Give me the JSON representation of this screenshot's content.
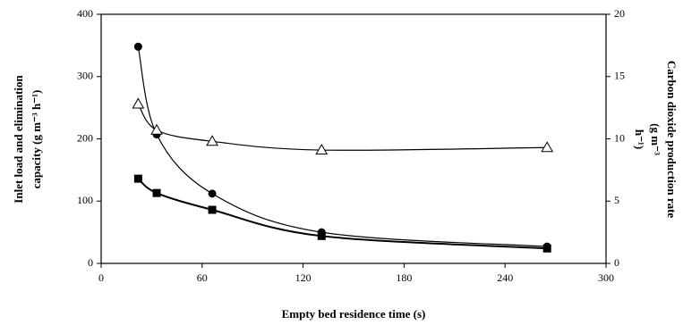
{
  "chart_data": {
    "type": "line",
    "xlabel": "Empty bed residence time (s)",
    "ylabel": [
      "Inlet load and elimination",
      "capacity (g m⁻³ h⁻¹)"
    ],
    "y2label": [
      "Carbon dioxide production rate",
      "(g m⁻³",
      "h⁻¹)"
    ],
    "xlim": [
      0,
      300
    ],
    "xticks": [
      0,
      60,
      120,
      180,
      240,
      300
    ],
    "ylim": [
      0,
      400
    ],
    "yticks": [
      0,
      100,
      200,
      300,
      400
    ],
    "y2lim": [
      0,
      20
    ],
    "y2ticks": [
      0,
      5,
      10,
      15,
      20
    ],
    "series": [
      {
        "color": "#000000",
        "marker": "circle",
        "x": [
          22,
          33,
          66,
          131,
          265
        ],
        "values": [
          348,
          207,
          112,
          50,
          27
        ]
      },
      {
        "color": "#000000",
        "marker": "square",
        "x": [
          22,
          33,
          66,
          131,
          265
        ],
        "values": [
          136,
          113,
          86,
          44,
          24
        ]
      },
      {
        "color": "#000000",
        "marker": "triangle-open",
        "axis": "y2",
        "x": [
          22,
          33,
          66,
          131,
          265
        ],
        "values": [
          12.8,
          10.7,
          9.8,
          9.1,
          9.3
        ]
      }
    ]
  }
}
